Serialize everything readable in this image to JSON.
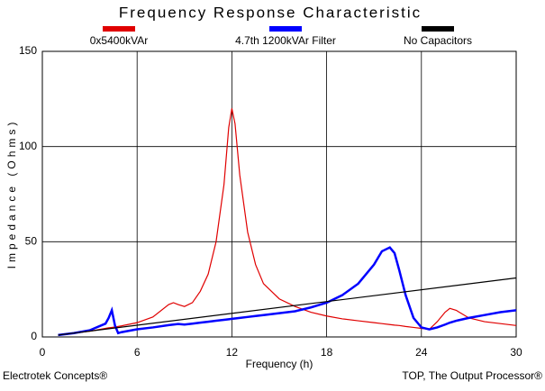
{
  "chart_data": {
    "type": "line",
    "title": "Frequency Response Characteristic",
    "x_label": "Frequency (h)",
    "y_label": "Impedance (Ohms)",
    "footer_left": "Electrotek Concepts®",
    "footer_right": "TOP, The Output Processor®",
    "xlim": [
      0,
      30
    ],
    "xticks": [
      0,
      6,
      12,
      18,
      24,
      30
    ],
    "ylim": [
      0,
      150
    ],
    "yticks": [
      0,
      50,
      100,
      150
    ],
    "grid": true,
    "series": [
      {
        "name": "0x5400kVAr",
        "color": "#e00000",
        "x": [
          1,
          2,
          3,
          4,
          4.2,
          4.4,
          4.6,
          4.8,
          5,
          6,
          7,
          8,
          8.3,
          8.6,
          9,
          9.5,
          10,
          10.5,
          11,
          11.5,
          11.8,
          12,
          12.2,
          12.5,
          13,
          13.5,
          14,
          15,
          16,
          17,
          18,
          19,
          20,
          21,
          21.5,
          22,
          22.3,
          22.6,
          23,
          23.5,
          24,
          24.5,
          25,
          25.5,
          25.8,
          26.2,
          27,
          28,
          29,
          30
        ],
        "values": [
          1,
          2,
          3,
          4.5,
          4.8,
          5,
          5.2,
          5.5,
          5.8,
          7.5,
          10.5,
          17,
          18,
          17,
          16,
          18,
          24,
          33,
          50,
          80,
          110,
          120,
          112,
          85,
          55,
          38,
          28,
          20,
          16,
          13,
          11,
          9.5,
          8.5,
          7.5,
          7,
          6.5,
          6.2,
          6,
          5.5,
          5,
          4.5,
          4,
          8,
          13,
          15,
          14,
          10,
          8,
          7,
          6
        ]
      },
      {
        "name": "4.7th 1200kVAr Filter",
        "color": "#0000ff",
        "x": [
          1,
          2,
          3,
          4,
          4.2,
          4.4,
          4.6,
          4.8,
          5,
          6,
          7,
          8,
          8.3,
          8.6,
          9,
          9.5,
          10,
          10.5,
          11,
          11.5,
          11.8,
          12,
          12.2,
          12.5,
          13,
          13.5,
          14,
          15,
          16,
          17,
          18,
          19,
          20,
          21,
          21.5,
          22,
          22.3,
          22.6,
          23,
          23.5,
          24,
          24.5,
          25,
          25.5,
          25.8,
          26.2,
          27,
          28,
          29,
          30
        ],
        "values": [
          1,
          2,
          3.5,
          7,
          10,
          14,
          6,
          2,
          2.5,
          4,
          5,
          6.2,
          6.5,
          6.8,
          6.5,
          7,
          7.5,
          8,
          8.5,
          9,
          9.3,
          9.5,
          9.7,
          10,
          10.5,
          11,
          11.5,
          12.5,
          13.5,
          15.5,
          18,
          22,
          28,
          38,
          45,
          47,
          44,
          35,
          22,
          10,
          5,
          4,
          5,
          6.5,
          7.5,
          8.5,
          10,
          11.5,
          13,
          14
        ]
      },
      {
        "name": "No Capacitors",
        "color": "#000000",
        "x": [
          1,
          30
        ],
        "values": [
          1,
          31
        ]
      }
    ]
  }
}
